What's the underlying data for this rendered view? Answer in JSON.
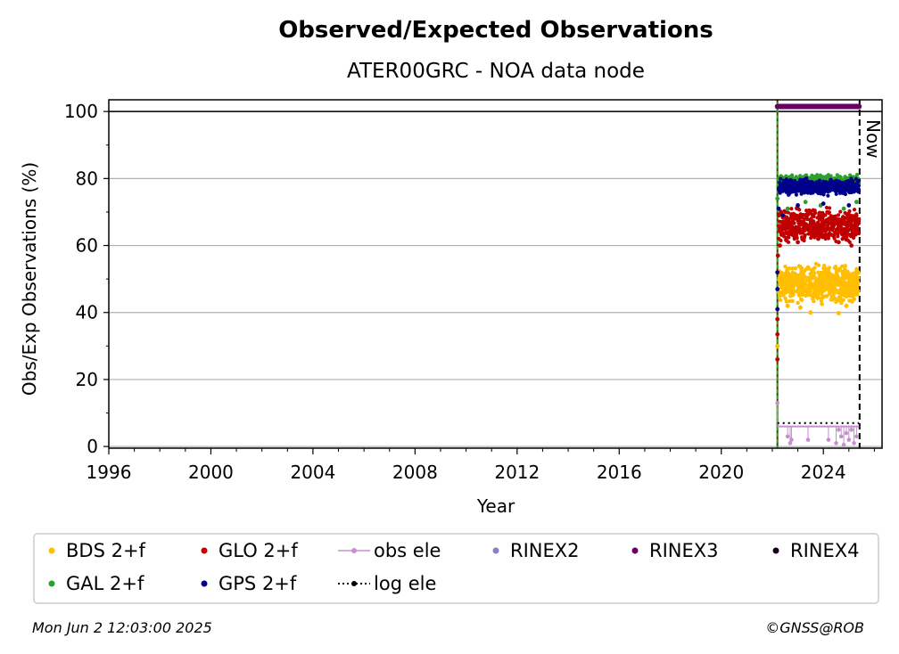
{
  "chart_data": {
    "type": "scatter",
    "title": "Observed/Expected Observations",
    "subtitle": "ATER00GRC - NOA data node",
    "xlabel": "Year",
    "ylabel": "Obs/Exp Observations (%)",
    "xlim": [
      1996,
      2026.3
    ],
    "ylim": [
      -0.5,
      103.5
    ],
    "xticks": [
      1996,
      2000,
      2004,
      2008,
      2012,
      2016,
      2020,
      2024
    ],
    "xtick_labels": [
      "1996",
      "2000",
      "2004",
      "2008",
      "2012",
      "2016",
      "2020",
      "2024"
    ],
    "yticks": [
      0,
      20,
      40,
      60,
      80,
      100
    ],
    "ytick_labels": [
      "0",
      "20",
      "40",
      "60",
      "80",
      "100"
    ],
    "grid": "horizontal",
    "reference_line_y": 100,
    "data_start_line_x": 2022.2,
    "now_line": {
      "x": 2025.42,
      "label": "Now"
    },
    "series": [
      {
        "name": "BDS 2+f",
        "color": "#ffbf00",
        "marker": "dot",
        "x_range": [
          2022.25,
          2025.4
        ],
        "y_center": 48.5,
        "y_spread": 3.5,
        "outliers": [
          [
            2022.2,
            30
          ],
          [
            2022.6,
            42
          ],
          [
            2023.1,
            41.5
          ],
          [
            2023.5,
            40
          ],
          [
            2024.6,
            39.8
          ],
          [
            2024.9,
            42
          ],
          [
            2025.2,
            44
          ]
        ]
      },
      {
        "name": "GLO 2+f",
        "color": "#c00000",
        "marker": "dot",
        "x_range": [
          2022.25,
          2025.4
        ],
        "y_center": 66,
        "y_spread": 3.5,
        "outliers": [
          [
            2022.2,
            26
          ],
          [
            2022.2,
            33.5
          ],
          [
            2022.2,
            38
          ],
          [
            2022.22,
            57
          ],
          [
            2022.3,
            60
          ],
          [
            2023.0,
            61
          ],
          [
            2023.8,
            62
          ],
          [
            2024.6,
            61
          ],
          [
            2025.1,
            60
          ]
        ]
      },
      {
        "name": "GAL 2+f",
        "color": "#2ca02c",
        "marker": "dot",
        "x_range": [
          2022.25,
          2025.4
        ],
        "y_center": 79.5,
        "y_spread": 1.0,
        "outliers": [
          [
            2022.2,
            74
          ],
          [
            2022.6,
            71
          ],
          [
            2023.3,
            73
          ],
          [
            2023.9,
            72
          ],
          [
            2024.8,
            71
          ],
          [
            2025.3,
            73
          ]
        ]
      },
      {
        "name": "GPS 2+f",
        "color": "#00008b",
        "marker": "dot",
        "x_range": [
          2022.25,
          2025.4
        ],
        "y_center": 77.5,
        "y_spread": 1.5,
        "outliers": [
          [
            2022.2,
            41
          ],
          [
            2022.2,
            47
          ],
          [
            2022.2,
            52
          ],
          [
            2022.25,
            71
          ],
          [
            2022.4,
            69
          ],
          [
            2023.0,
            72
          ],
          [
            2024.0,
            72.5
          ],
          [
            2025.0,
            72
          ]
        ]
      },
      {
        "name": "obs ele",
        "color": "#c78fcf",
        "marker": "line-dot",
        "baseline": 6,
        "points": [
          [
            2022.2,
            13
          ],
          [
            2022.6,
            3
          ],
          [
            2022.7,
            1
          ],
          [
            2022.75,
            2
          ],
          [
            2023.4,
            2
          ],
          [
            2024.2,
            2
          ],
          [
            2024.5,
            1
          ],
          [
            2024.6,
            5
          ],
          [
            2024.7,
            3
          ],
          [
            2024.8,
            0.5
          ],
          [
            2024.9,
            4
          ],
          [
            2025.0,
            2
          ],
          [
            2025.1,
            5
          ],
          [
            2025.2,
            1
          ],
          [
            2025.3,
            3
          ]
        ]
      },
      {
        "name": "RINEX2",
        "color": "#8c7fbf",
        "marker": "dot",
        "points": []
      },
      {
        "name": "RINEX3",
        "color": "#6a0066",
        "marker": "dot",
        "x_range": [
          2022.2,
          2025.4
        ],
        "y_center": 101.5,
        "y_spread": 0
      },
      {
        "name": "RINEX4",
        "color": "#1a0020",
        "marker": "dot",
        "points": []
      },
      {
        "name": "log ele",
        "color": "#000000",
        "marker": "dotted-line",
        "x_range": [
          2022.2,
          2025.4
        ],
        "y": 7
      }
    ],
    "legend_order": [
      "BDS 2+f",
      "GLO 2+f",
      "obs ele",
      "RINEX2",
      "RINEX3",
      "RINEX4",
      "GAL 2+f",
      "GPS 2+f",
      "log ele"
    ],
    "legend_placement": "bottom"
  },
  "footer": {
    "timestamp": "Mon Jun  2 12:03:00 2025",
    "credit": "©GNSS@ROB"
  }
}
